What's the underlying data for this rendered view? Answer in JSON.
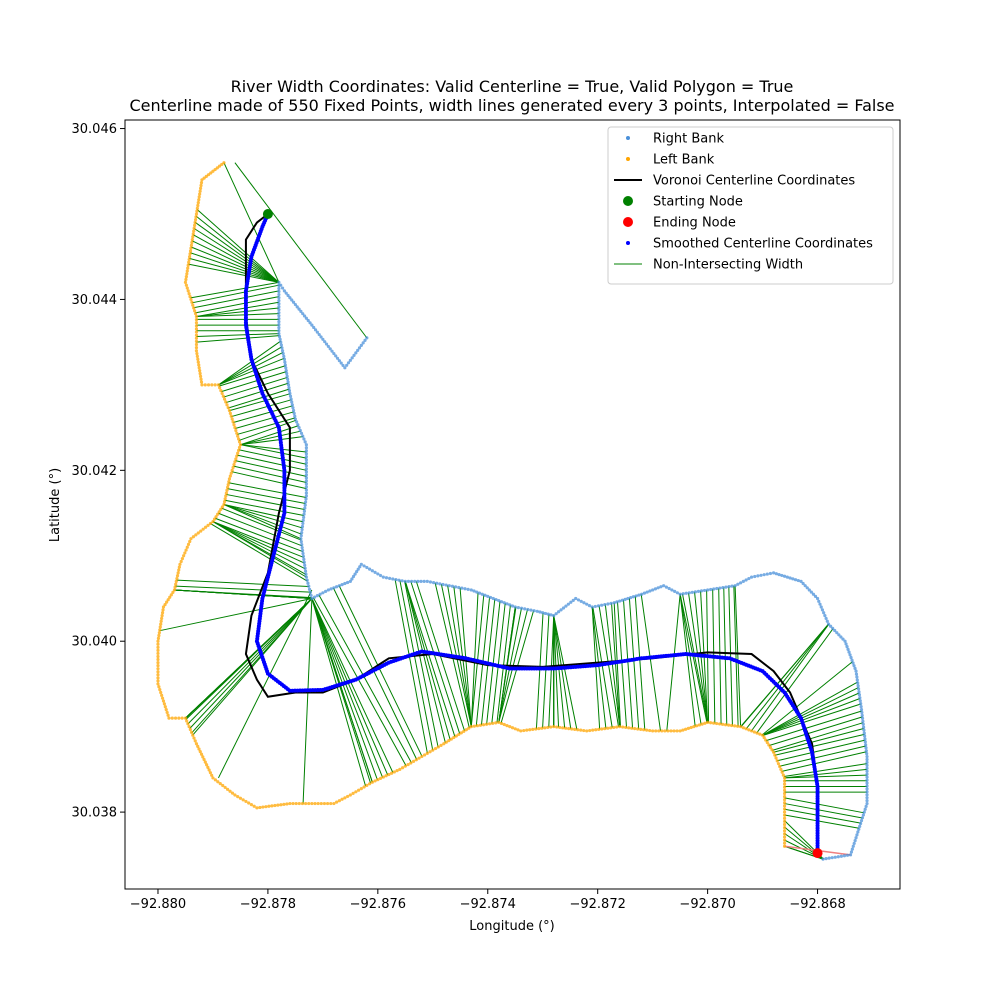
{
  "chart_data": {
    "type": "scatter",
    "title": "River Width Coordinates: Valid Centerline = True, Valid Polygon = True",
    "subtitle": "Centerline made of 550 Fixed Points, width lines generated every 3 points, Interpolated = False",
    "xlabel": "Longitude (°)",
    "ylabel": "Latitude (°)",
    "xlim": [
      -92.8806,
      -92.8665
    ],
    "ylim": [
      30.0371,
      30.0461
    ],
    "x_ticks": [
      -92.88,
      -92.878,
      -92.876,
      -92.874,
      -92.872,
      -92.87,
      -92.868
    ],
    "x_tick_labels": [
      "−92.880",
      "−92.878",
      "−92.876",
      "−92.874",
      "−92.872",
      "−92.870",
      "−92.868"
    ],
    "y_ticks": [
      30.038,
      30.04,
      30.042,
      30.044,
      30.046
    ],
    "y_tick_labels": [
      "30.038",
      "30.040",
      "30.042",
      "30.044",
      "30.046"
    ],
    "grid": false,
    "legend_position": "top-right",
    "legend": [
      {
        "label": "Right Bank",
        "marker": "dot-small",
        "color": "#4a90d9"
      },
      {
        "label": "Left Bank",
        "marker": "dot-small",
        "color": "#ffa500"
      },
      {
        "label": "Voronoi Centerline Coordinates",
        "marker": "line",
        "color": "#000000"
      },
      {
        "label": "Starting Node",
        "marker": "dot-large",
        "color": "#008000"
      },
      {
        "label": "Ending Node",
        "marker": "dot-large",
        "color": "#ff0000"
      },
      {
        "label": "Smoothed Centerline Coordinates",
        "marker": "dot-small",
        "color": "#0000ff"
      },
      {
        "label": "Non-Intersecting Width",
        "marker": "line",
        "color": "#008000"
      }
    ],
    "colors": {
      "right_bank": "#4a90d9",
      "left_bank": "#ffa500",
      "voronoi": "#000000",
      "start": "#008000",
      "end": "#ff0000",
      "smoothed": "#0000ff",
      "width": "#008000",
      "end_cap": "#f08080"
    },
    "series": {
      "right_bank": [
        [
          -92.8679,
          30.03745
        ],
        [
          -92.8674,
          30.0375
        ],
        [
          -92.8671,
          30.0381
        ],
        [
          -92.8671,
          30.03865
        ],
        [
          -92.8672,
          30.0392
        ],
        [
          -92.8673,
          30.03965
        ],
        [
          -92.8675,
          30.04
        ],
        [
          -92.8678,
          30.0402
        ],
        [
          -92.868,
          30.0405
        ],
        [
          -92.8683,
          30.0407
        ],
        [
          -92.8688,
          30.0408
        ],
        [
          -92.8692,
          30.04075
        ],
        [
          -92.8695,
          30.04065
        ],
        [
          -92.87,
          30.0406
        ],
        [
          -92.8705,
          30.04055
        ],
        [
          -92.8708,
          30.04065
        ],
        [
          -92.8712,
          30.04055
        ],
        [
          -92.8717,
          30.04045
        ],
        [
          -92.8721,
          30.0404
        ],
        [
          -92.8724,
          30.0405
        ],
        [
          -92.8728,
          30.0403
        ],
        [
          -92.8731,
          30.04035
        ],
        [
          -92.8735,
          30.0404
        ],
        [
          -92.8739,
          30.0405
        ],
        [
          -92.8743,
          30.0406
        ],
        [
          -92.8747,
          30.04065
        ],
        [
          -92.8751,
          30.0407
        ],
        [
          -92.8755,
          30.0407
        ],
        [
          -92.8759,
          30.04075
        ],
        [
          -92.8763,
          30.0409
        ],
        [
          -92.8765,
          30.0407
        ],
        [
          -92.8769,
          30.0406
        ],
        [
          -92.8772,
          30.0405
        ],
        [
          -92.8773,
          30.04075
        ],
        [
          -92.8774,
          30.0412
        ],
        [
          -92.8773,
          30.0417
        ],
        [
          -92.8773,
          30.0423
        ],
        [
          -92.8775,
          30.0426
        ],
        [
          -92.8776,
          30.0429
        ],
        [
          -92.8777,
          30.0433
        ],
        [
          -92.8778,
          30.0436
        ],
        [
          -92.8778,
          30.04395
        ],
        [
          -92.8778,
          30.0442
        ],
        [
          -92.8777,
          30.0441
        ],
        [
          -92.8772,
          30.0437
        ],
        [
          -92.8766,
          30.0432
        ],
        [
          -92.8762,
          30.04355
        ]
      ],
      "left_bank": [
        [
          -92.8686,
          30.0376
        ],
        [
          -92.8686,
          30.038
        ],
        [
          -92.8686,
          30.0384
        ],
        [
          -92.8688,
          30.0387
        ],
        [
          -92.869,
          30.0389
        ],
        [
          -92.8694,
          30.039
        ],
        [
          -92.87,
          30.03905
        ],
        [
          -92.8705,
          30.03895
        ],
        [
          -92.871,
          30.03895
        ],
        [
          -92.8716,
          30.039
        ],
        [
          -92.8722,
          30.03895
        ],
        [
          -92.8728,
          30.039
        ],
        [
          -92.8734,
          30.03895
        ],
        [
          -92.8738,
          30.03905
        ],
        [
          -92.8743,
          30.039
        ],
        [
          -92.8748,
          30.0388
        ],
        [
          -92.8752,
          30.03865
        ],
        [
          -92.8756,
          30.0385
        ],
        [
          -92.8761,
          30.03835
        ],
        [
          -92.8765,
          30.0382
        ],
        [
          -92.8768,
          30.0381
        ],
        [
          -92.8772,
          30.0381
        ],
        [
          -92.8776,
          30.0381
        ],
        [
          -92.8782,
          30.03805
        ],
        [
          -92.8786,
          30.0382
        ],
        [
          -92.879,
          30.0384
        ],
        [
          -92.8793,
          30.0388
        ],
        [
          -92.8795,
          30.0391
        ],
        [
          -92.8798,
          30.0391
        ],
        [
          -92.88,
          30.0395
        ],
        [
          -92.88,
          30.04
        ],
        [
          -92.8799,
          30.0404
        ],
        [
          -92.8797,
          30.0406
        ],
        [
          -92.8796,
          30.0409
        ],
        [
          -92.8794,
          30.0412
        ],
        [
          -92.879,
          30.0414
        ],
        [
          -92.8788,
          30.0416
        ],
        [
          -92.8787,
          30.0419
        ],
        [
          -92.8785,
          30.0423
        ],
        [
          -92.8787,
          30.0427
        ],
        [
          -92.8789,
          30.043
        ],
        [
          -92.8792,
          30.043
        ],
        [
          -92.8793,
          30.0434
        ],
        [
          -92.8793,
          30.0438
        ],
        [
          -92.8795,
          30.0442
        ],
        [
          -92.8794,
          30.0446
        ],
        [
          -92.8793,
          30.045
        ],
        [
          -92.8792,
          30.0454
        ],
        [
          -92.879,
          30.0455
        ],
        [
          -92.8788,
          30.0456
        ]
      ],
      "voronoi_centerline": [
        [
          -92.868,
          30.03752
        ],
        [
          -92.868,
          30.0378
        ],
        [
          -92.868,
          30.0383
        ],
        [
          -92.8681,
          30.0388
        ],
        [
          -92.8683,
          30.0391
        ],
        [
          -92.8685,
          30.0394
        ],
        [
          -92.8688,
          30.03965
        ],
        [
          -92.8692,
          30.03985
        ],
        [
          -92.87,
          30.03987
        ],
        [
          -92.871,
          30.0398
        ],
        [
          -92.872,
          30.03975
        ],
        [
          -92.873,
          30.0397
        ],
        [
          -92.874,
          30.03972
        ],
        [
          -92.875,
          30.03985
        ],
        [
          -92.8758,
          30.0398
        ],
        [
          -92.8764,
          30.03955
        ],
        [
          -92.877,
          30.0394
        ],
        [
          -92.8775,
          30.0394
        ],
        [
          -92.878,
          30.03935
        ],
        [
          -92.8782,
          30.03955
        ],
        [
          -92.8784,
          30.03985
        ],
        [
          -92.8783,
          30.0403
        ],
        [
          -92.878,
          30.0408
        ],
        [
          -92.8778,
          30.0415
        ],
        [
          -92.8776,
          30.042
        ],
        [
          -92.8776,
          30.0425
        ],
        [
          -92.878,
          30.0429
        ],
        [
          -92.8783,
          30.0433
        ],
        [
          -92.8784,
          30.0438
        ],
        [
          -92.8784,
          30.0442
        ],
        [
          -92.8784,
          30.0447
        ],
        [
          -92.8782,
          30.0449
        ],
        [
          -92.878,
          30.045
        ]
      ],
      "smoothed_centerline": [
        [
          -92.868,
          30.03752
        ],
        [
          -92.868,
          30.0379
        ],
        [
          -92.868,
          30.0383
        ],
        [
          -92.8681,
          30.0387
        ],
        [
          -92.8683,
          30.0391
        ],
        [
          -92.8686,
          30.0394
        ],
        [
          -92.869,
          30.03965
        ],
        [
          -92.8696,
          30.0398
        ],
        [
          -92.8704,
          30.03985
        ],
        [
          -92.8712,
          30.0398
        ],
        [
          -92.872,
          30.03972
        ],
        [
          -92.8728,
          30.03968
        ],
        [
          -92.8736,
          30.03968
        ],
        [
          -92.8744,
          30.0398
        ],
        [
          -92.8752,
          30.03988
        ],
        [
          -92.8758,
          30.03975
        ],
        [
          -92.8764,
          30.03955
        ],
        [
          -92.877,
          30.03943
        ],
        [
          -92.8776,
          30.03942
        ],
        [
          -92.878,
          30.03962
        ],
        [
          -92.8782,
          30.04
        ],
        [
          -92.8781,
          30.0405
        ],
        [
          -92.8779,
          30.041
        ],
        [
          -92.8777,
          30.0415
        ],
        [
          -92.8777,
          30.042
        ],
        [
          -92.8778,
          30.0425
        ],
        [
          -92.8781,
          30.0429
        ],
        [
          -92.8783,
          30.0433
        ],
        [
          -92.8784,
          30.0437
        ],
        [
          -92.8784,
          30.0441
        ],
        [
          -92.8783,
          30.0445
        ],
        [
          -92.8781,
          30.04485
        ],
        [
          -92.878,
          30.045
        ]
      ],
      "extra_width_lines": [
        [
          [
            -92.8786,
            30.0456
          ],
          [
            -92.8762,
            30.04355
          ]
        ],
        [
          [
            -92.8772,
            30.0406
          ],
          [
            -92.8789,
            30.0384
          ]
        ]
      ],
      "end_cap": [
        [
          -92.8686,
          30.0376
        ],
        [
          -92.8674,
          30.0375
        ]
      ],
      "starting_node": [
        -92.878,
        30.045
      ],
      "ending_node": [
        -92.868,
        30.03752
      ]
    }
  }
}
